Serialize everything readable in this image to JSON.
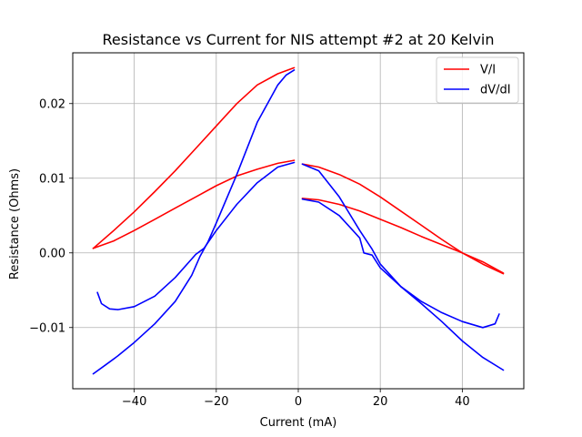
{
  "chart_data": {
    "type": "line",
    "title": "Resistance vs Current for NIS attempt #2 at 20 Kelvin",
    "xlabel": "Current (mA)",
    "ylabel": "Resistance (Ohms)",
    "xlim": [
      -55,
      55
    ],
    "ylim": [
      -0.0182,
      0.0268
    ],
    "xticks": [
      -40,
      -20,
      0,
      20,
      40
    ],
    "xtick_labels": [
      "−40",
      "−20",
      "0",
      "20",
      "40"
    ],
    "yticks": [
      -0.01,
      0.0,
      0.01,
      0.02
    ],
    "ytick_labels": [
      "−0.01",
      "0.00",
      "0.01",
      "0.02"
    ],
    "grid": true,
    "legend_position": "top-right",
    "series": [
      {
        "name": "V/I",
        "color": "#ff0000",
        "segments": [
          {
            "x": [
              -50,
              -45,
              -40,
              -35,
              -30,
              -25,
              -20,
              -15,
              -10,
              -5,
              -1
            ],
            "y": [
              0.0006,
              0.003,
              0.0055,
              0.0082,
              0.011,
              0.014,
              0.017,
              0.02,
              0.0225,
              0.024,
              0.0248
            ]
          },
          {
            "x": [
              -1,
              -5,
              -10,
              -15,
              -20,
              -25,
              -30,
              -35,
              -40,
              -45,
              -50
            ],
            "y": [
              0.0124,
              0.012,
              0.0112,
              0.0103,
              0.009,
              0.0075,
              0.006,
              0.0045,
              0.003,
              0.0016,
              0.0006
            ]
          },
          {
            "x": [
              1,
              5,
              10,
              15,
              20,
              25,
              30,
              35,
              40,
              45,
              50
            ],
            "y": [
              0.0119,
              0.0115,
              0.0105,
              0.0092,
              0.0075,
              0.0056,
              0.0037,
              0.0018,
              0.0,
              -0.0015,
              -0.0028
            ]
          },
          {
            "x": [
              1,
              5,
              10,
              15,
              20,
              25,
              30,
              35,
              40,
              45,
              50
            ],
            "y": [
              0.0073,
              0.0071,
              0.0065,
              0.0056,
              0.0045,
              0.0034,
              0.0022,
              0.0011,
              0.0,
              -0.0012,
              -0.0027
            ]
          }
        ]
      },
      {
        "name": "dV/dI",
        "color": "#0000ff",
        "segments": [
          {
            "x": [
              -50,
              -47,
              -44,
              -40,
              -35,
              -30,
              -26,
              -24,
              -22,
              -20,
              -15,
              -10,
              -5,
              -3,
              -1
            ],
            "y": [
              -0.0162,
              -0.015,
              -0.0138,
              -0.012,
              -0.0095,
              -0.0065,
              -0.003,
              -0.0005,
              0.0015,
              0.004,
              0.0105,
              0.0175,
              0.0225,
              0.0238,
              0.0245
            ]
          },
          {
            "x": [
              -1,
              -5,
              -10,
              -15,
              -20,
              -23,
              -25,
              -30,
              -35,
              -40,
              -44,
              -46,
              -48,
              -49
            ],
            "y": [
              0.0121,
              0.0115,
              0.0094,
              0.0065,
              0.003,
              0.0006,
              -0.0002,
              -0.0033,
              -0.0058,
              -0.0072,
              -0.0076,
              -0.0075,
              -0.0068,
              -0.0053
            ]
          },
          {
            "x": [
              1,
              5,
              10,
              15,
              16,
              18,
              20,
              25,
              30,
              35,
              40,
              45,
              48,
              49
            ],
            "y": [
              0.0072,
              0.0068,
              0.005,
              0.002,
              0.0,
              -0.0003,
              -0.002,
              -0.0045,
              -0.0065,
              -0.008,
              -0.0092,
              -0.01,
              -0.0095,
              -0.0082
            ]
          },
          {
            "x": [
              1,
              5,
              10,
              15,
              18,
              20,
              25,
              30,
              35,
              40,
              45,
              50
            ],
            "y": [
              0.0119,
              0.011,
              0.0075,
              0.003,
              0.0005,
              -0.0015,
              -0.0045,
              -0.0068,
              -0.0092,
              -0.0118,
              -0.014,
              -0.0157
            ]
          }
        ]
      }
    ]
  }
}
